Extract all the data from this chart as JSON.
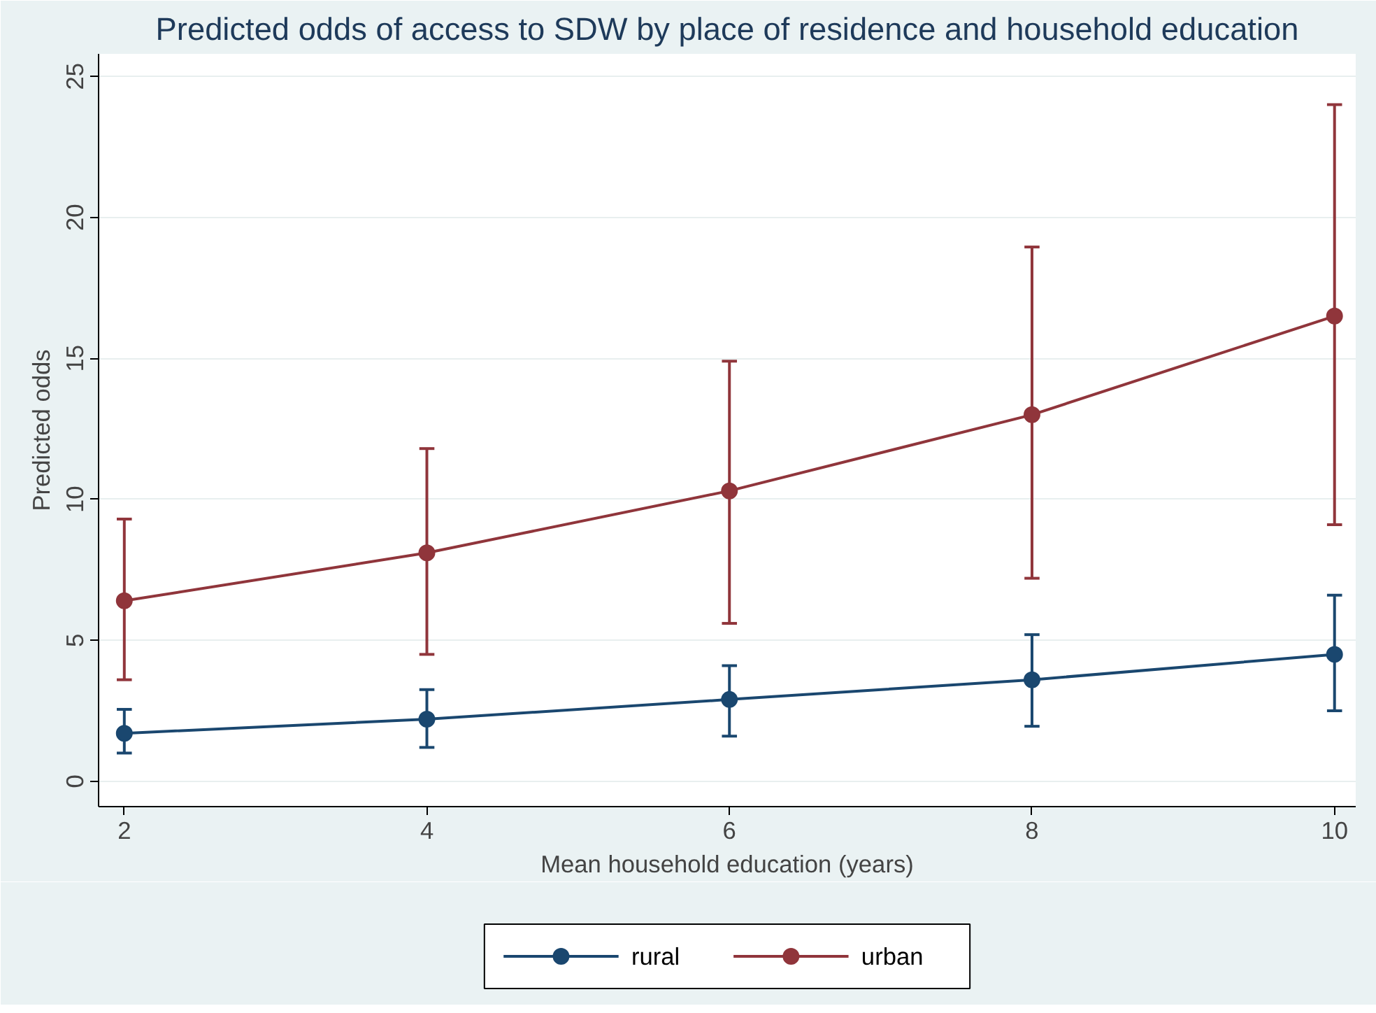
{
  "chart_data": {
    "type": "line",
    "title": "Predicted odds of access to SDW by place of residence and household education",
    "xlabel": "Mean household education (years)",
    "ylabel": "Predicted odds",
    "x": [
      2,
      4,
      6,
      8,
      10
    ],
    "series": [
      {
        "name": "rural",
        "color": "#1a476f",
        "values": [
          1.7,
          2.2,
          2.9,
          3.6,
          4.5
        ],
        "errors": [
          [
            1.0,
            2.55
          ],
          [
            1.2,
            3.25
          ],
          [
            1.6,
            4.1
          ],
          [
            1.95,
            5.2
          ],
          [
            2.5,
            6.6
          ]
        ]
      },
      {
        "name": "urban",
        "color": "#90353b",
        "values": [
          6.4,
          8.1,
          10.3,
          13.0,
          16.5
        ],
        "errors": [
          [
            3.6,
            9.3
          ],
          [
            4.5,
            11.8
          ],
          [
            5.6,
            14.9
          ],
          [
            7.2,
            18.95
          ],
          [
            9.1,
            24.0
          ]
        ]
      }
    ],
    "xlim": [
      1.83,
      10.14
    ],
    "ylim": [
      -0.9,
      25.8
    ],
    "xticks": [
      2,
      4,
      6,
      8,
      10
    ],
    "yticks": [
      0,
      5,
      10,
      15,
      20,
      25
    ],
    "grid": "y",
    "legend": "bottom",
    "marker": "circle",
    "line_style": "solid"
  }
}
